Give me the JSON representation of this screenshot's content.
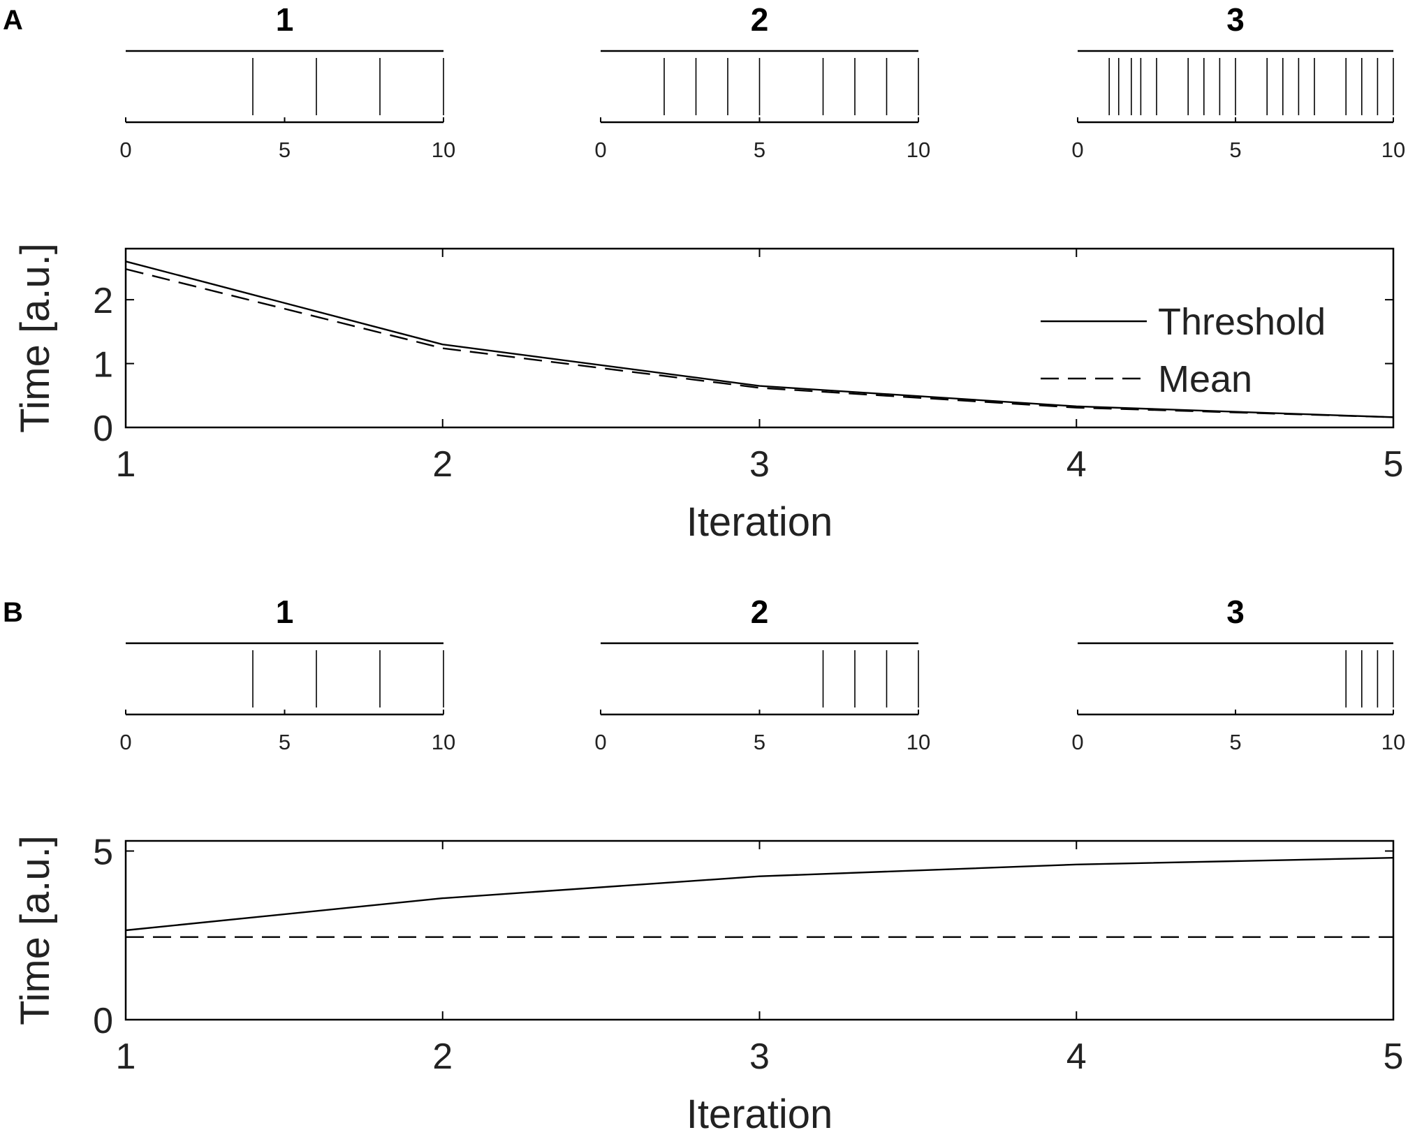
{
  "panels": [
    {
      "letter": "A",
      "rasters": [
        {
          "title": "1",
          "xticks": [
            "0",
            "5",
            "10"
          ],
          "events": [
            4,
            6,
            8,
            10
          ]
        },
        {
          "title": "2",
          "xticks": [
            "0",
            "5",
            "10"
          ],
          "events": [
            2,
            3,
            4,
            5,
            7,
            8,
            9,
            10
          ]
        },
        {
          "title": "3",
          "xticks": [
            "0",
            "5",
            "10"
          ],
          "events": [
            1,
            1.3,
            1.7,
            2,
            2.5,
            3.5,
            4,
            4.5,
            5,
            6,
            6.5,
            7,
            7.5,
            8.5,
            9,
            9.5,
            10
          ]
        }
      ],
      "chart_data": {
        "type": "line",
        "x": [
          1,
          2,
          3,
          4,
          5
        ],
        "xlabel": "Iteration",
        "ylabel": "Time [a.u.]",
        "xlim": [
          1,
          5
        ],
        "ylim": [
          0,
          2.8
        ],
        "xticks": [
          "1",
          "2",
          "3",
          "4",
          "5"
        ],
        "yticks": [
          0,
          1,
          2
        ],
        "ytick_labels": [
          "0",
          "1",
          "2"
        ],
        "legend": "right",
        "series": [
          {
            "name": "Threshold",
            "style": "solid",
            "values": [
              2.6,
              1.3,
              0.65,
              0.33,
              0.16
            ]
          },
          {
            "name": "Mean",
            "style": "dashed",
            "values": [
              2.48,
              1.24,
              0.62,
              0.31,
              0.16
            ]
          }
        ]
      }
    },
    {
      "letter": "B",
      "rasters": [
        {
          "title": "1",
          "xticks": [
            "0",
            "5",
            "10"
          ],
          "events": [
            4,
            6,
            8,
            10
          ]
        },
        {
          "title": "2",
          "xticks": [
            "0",
            "5",
            "10"
          ],
          "events": [
            7,
            8,
            9,
            10
          ]
        },
        {
          "title": "3",
          "xticks": [
            "0",
            "5",
            "10"
          ],
          "events": [
            8.5,
            9,
            9.5,
            10
          ]
        }
      ],
      "chart_data": {
        "type": "line",
        "x": [
          1,
          2,
          3,
          4,
          5
        ],
        "xlabel": "Iteration",
        "ylabel": "Time [a.u.]",
        "xlim": [
          1,
          5
        ],
        "ylim": [
          0,
          5.3
        ],
        "xticks": [
          "1",
          "2",
          "3",
          "4",
          "5"
        ],
        "yticks": [
          0,
          5
        ],
        "ytick_labels": [
          "0",
          "5"
        ],
        "series": [
          {
            "style": "solid",
            "values": [
              2.65,
              3.6,
              4.25,
              4.6,
              4.8
            ]
          },
          {
            "style": "dashed",
            "values": [
              2.45,
              2.45,
              2.45,
              2.45,
              2.45
            ]
          }
        ]
      }
    }
  ]
}
